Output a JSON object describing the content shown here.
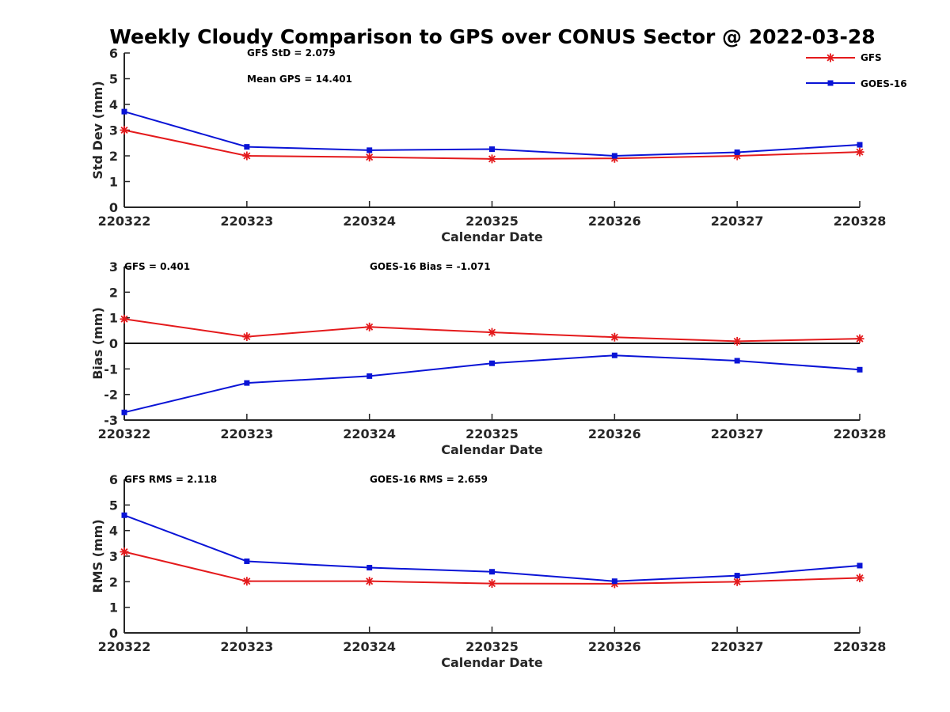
{
  "title": "Weekly Cloudy Comparison to GPS over CONUS Sector @ 2022-03-28",
  "colors": {
    "gfs": "#e41a1c",
    "goes16": "#0a14d6"
  },
  "legend": [
    {
      "key": "gfs",
      "label": "GFS",
      "marker": "asterisk"
    },
    {
      "key": "goes16",
      "label": "GOES-16",
      "marker": "square"
    }
  ],
  "chart_data": [
    {
      "type": "line",
      "categories": [
        "220322",
        "220323",
        "220324",
        "220325",
        "220326",
        "220327",
        "220328"
      ],
      "xlabel": "Calendar Date",
      "ylabel": "Std Dev (mm)",
      "ylim": [
        0,
        6
      ],
      "yticks": [
        0,
        1,
        2,
        3,
        4,
        5,
        6
      ],
      "zero_line": false,
      "annotations": [
        "GFS StD = 2.079",
        "Mean GPS = 14.401"
      ],
      "series": [
        {
          "name": "GFS",
          "key": "gfs",
          "values": [
            3.0,
            2.0,
            1.95,
            1.88,
            1.9,
            2.0,
            2.15
          ]
        },
        {
          "name": "GOES-16",
          "key": "goes16",
          "values": [
            3.72,
            2.35,
            2.22,
            2.26,
            2.0,
            2.14,
            2.43
          ]
        }
      ]
    },
    {
      "type": "line",
      "categories": [
        "220322",
        "220323",
        "220324",
        "220325",
        "220326",
        "220327",
        "220328"
      ],
      "xlabel": "Calendar Date",
      "ylabel": "Bias (mm)",
      "ylim": [
        -3,
        3
      ],
      "yticks": [
        -3,
        -2,
        -1,
        0,
        1,
        2,
        3
      ],
      "zero_line": true,
      "annotations": [
        "GFS = 0.401",
        "GOES-16 Bias  = -1.071"
      ],
      "series": [
        {
          "name": "GFS",
          "key": "gfs",
          "values": [
            0.95,
            0.26,
            0.64,
            0.43,
            0.24,
            0.08,
            0.18
          ]
        },
        {
          "name": "GOES-16",
          "key": "goes16",
          "values": [
            -2.7,
            -1.55,
            -1.28,
            -0.78,
            -0.47,
            -0.68,
            -1.03
          ]
        }
      ]
    },
    {
      "type": "line",
      "categories": [
        "220322",
        "220323",
        "220324",
        "220325",
        "220326",
        "220327",
        "220328"
      ],
      "xlabel": "Calendar Date",
      "ylabel": "RMS (mm)",
      "ylim": [
        0,
        6
      ],
      "yticks": [
        0,
        1,
        2,
        3,
        4,
        5,
        6
      ],
      "zero_line": false,
      "annotations": [
        "GFS RMS = 2.118",
        "GOES-16 RMS = 2.659"
      ],
      "series": [
        {
          "name": "GFS",
          "key": "gfs",
          "values": [
            3.17,
            2.02,
            2.02,
            1.93,
            1.92,
            2.0,
            2.15
          ]
        },
        {
          "name": "GOES-16",
          "key": "goes16",
          "values": [
            4.6,
            2.8,
            2.55,
            2.39,
            2.02,
            2.24,
            2.63
          ]
        }
      ]
    }
  ]
}
